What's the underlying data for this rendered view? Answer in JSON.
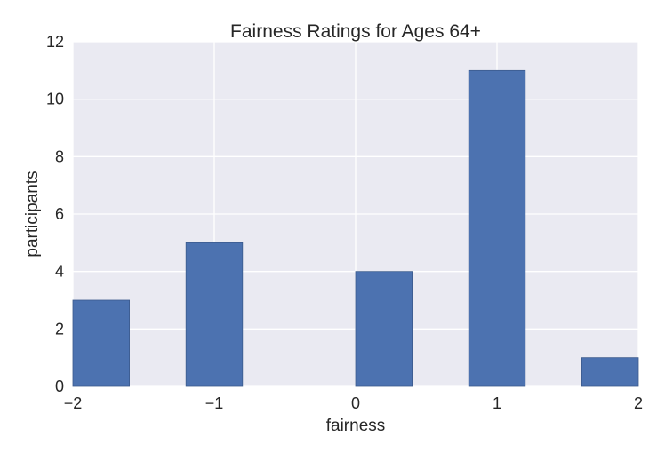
{
  "chart_data": {
    "type": "bar",
    "title": "Fairness Ratings for Ages 64+",
    "xlabel": "fairness",
    "ylabel": "participants",
    "xlim": [
      -2,
      2
    ],
    "ylim": [
      0,
      12
    ],
    "x_ticks": [
      -2,
      -1,
      0,
      1,
      2
    ],
    "x_tick_labels": [
      "−2",
      "−1",
      "0",
      "1",
      "2"
    ],
    "y_ticks": [
      0,
      2,
      4,
      6,
      8,
      10,
      12
    ],
    "y_tick_labels": [
      "0",
      "2",
      "4",
      "6",
      "8",
      "10",
      "12"
    ],
    "bins": [
      {
        "start": -2.0,
        "end": -1.6,
        "value": 3
      },
      {
        "start": -1.2,
        "end": -0.8,
        "value": 5
      },
      {
        "start": 0.0,
        "end": 0.4,
        "value": 4
      },
      {
        "start": 0.8,
        "end": 1.2,
        "value": 11
      },
      {
        "start": 1.6,
        "end": 2.0,
        "value": 1
      }
    ],
    "bar_color": "#4c72b0",
    "background_color": "#eaeaf2",
    "grid": true,
    "legend": "none"
  }
}
